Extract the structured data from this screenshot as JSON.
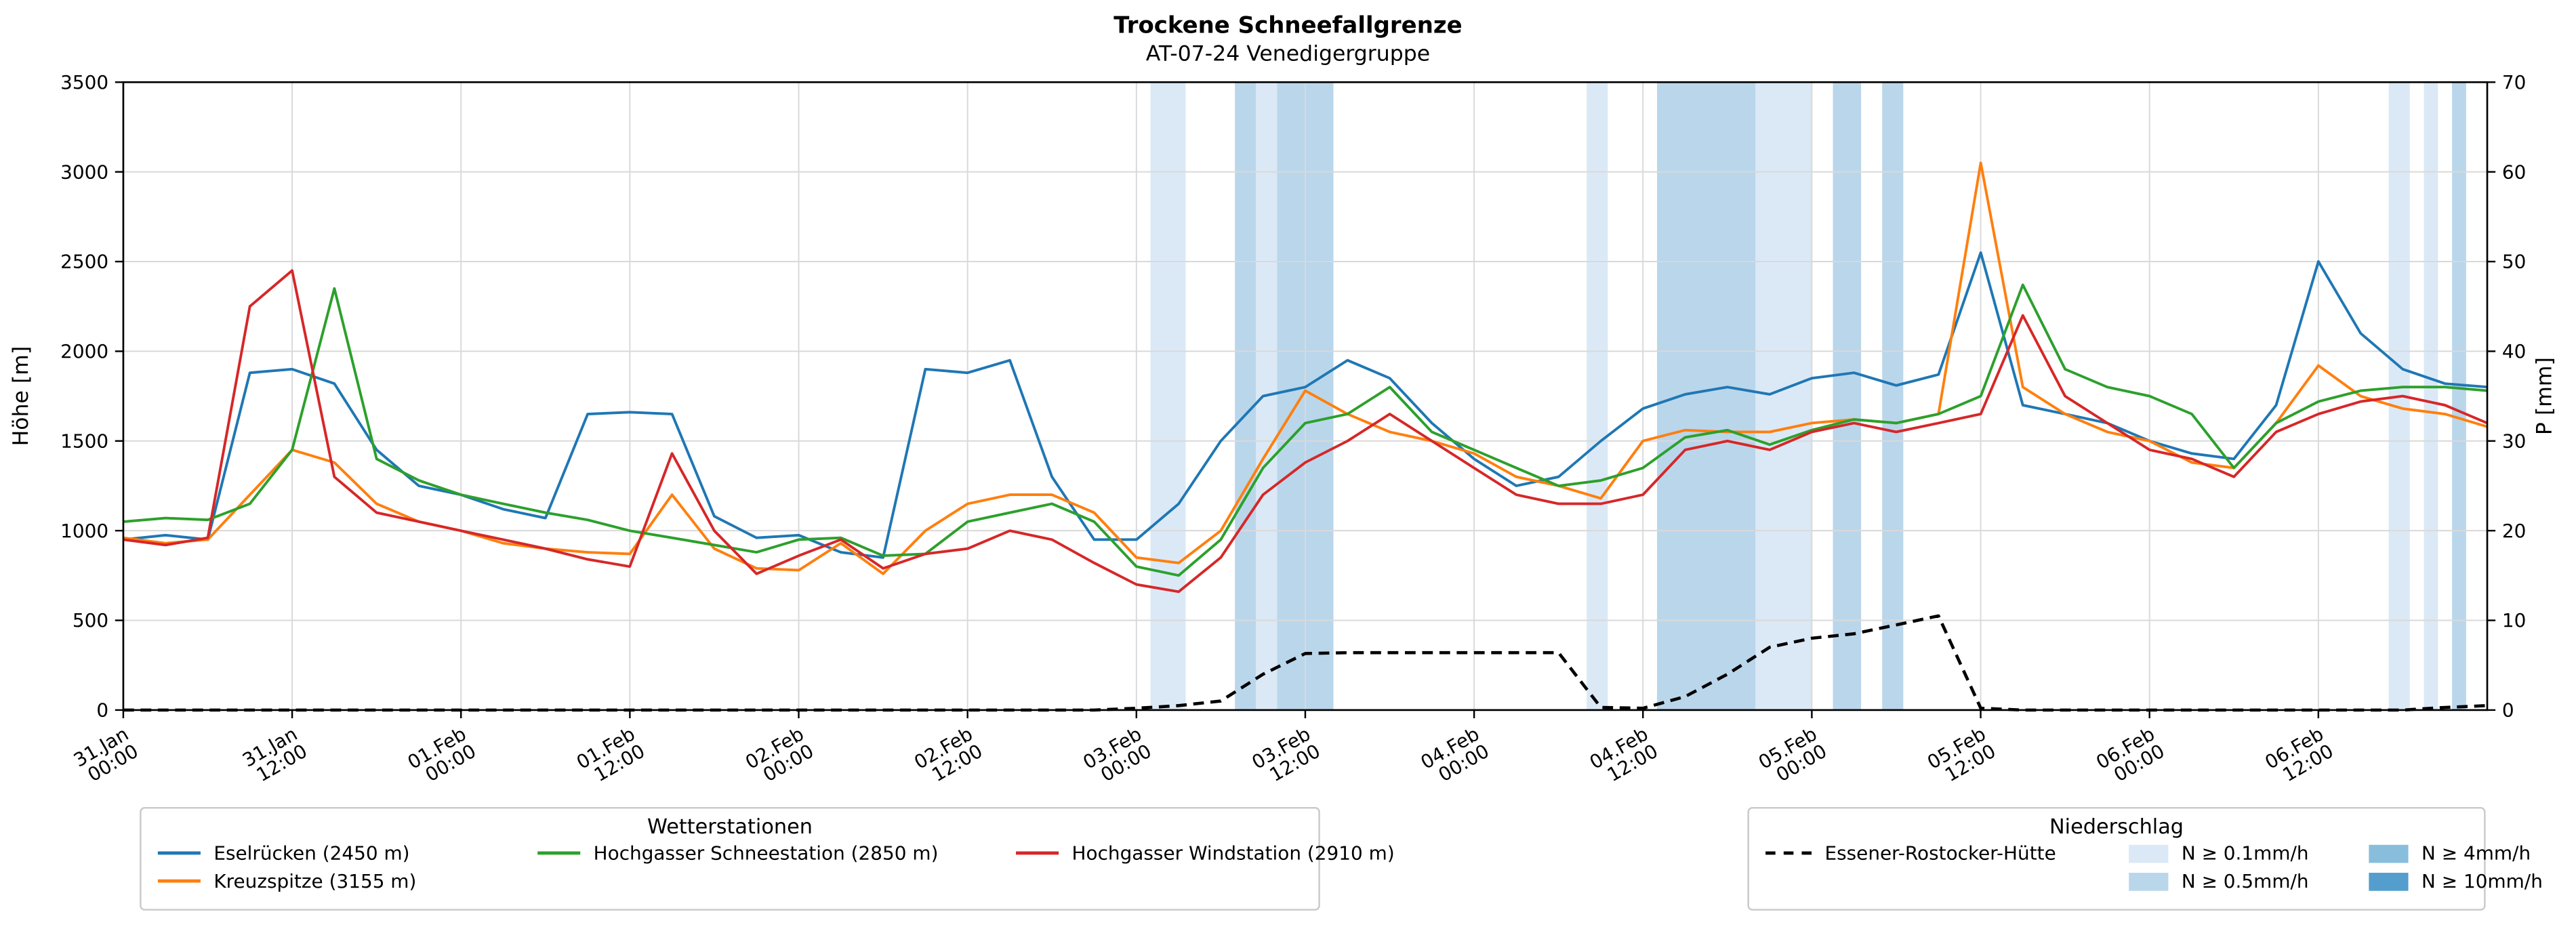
{
  "chart_data": {
    "type": "line",
    "title": "Trockene Schneefallgrenze",
    "subtitle": "AT-07-24 Venedigergruppe",
    "x_unit": "hours since 31.Jan 00:00",
    "xlim": [
      0,
      168
    ],
    "ylim_left": [
      0,
      3500
    ],
    "ylim_right": [
      0,
      70
    ],
    "ylabel_left": "Höhe [m]",
    "ylabel_right": "P [mm]",
    "yticks_left": [
      0,
      500,
      1000,
      1500,
      2000,
      2500,
      3000,
      3500
    ],
    "yticks_right": [
      0,
      10,
      20,
      30,
      40,
      50,
      60,
      70
    ],
    "grid": true,
    "legend_position": "below",
    "xtick_hours": [
      0,
      12,
      24,
      36,
      48,
      60,
      72,
      84,
      96,
      108,
      120,
      132,
      144,
      156
    ],
    "xtick_labels": [
      [
        "31.Jan",
        "00:00"
      ],
      [
        "31.Jan",
        "12:00"
      ],
      [
        "01.Feb",
        "00:00"
      ],
      [
        "01.Feb",
        "12:00"
      ],
      [
        "02.Feb",
        "00:00"
      ],
      [
        "02.Feb",
        "12:00"
      ],
      [
        "03.Feb",
        "00:00"
      ],
      [
        "03.Feb",
        "12:00"
      ],
      [
        "04.Feb",
        "00:00"
      ],
      [
        "04.Feb",
        "12:00"
      ],
      [
        "05.Feb",
        "00:00"
      ],
      [
        "05.Feb",
        "12:00"
      ],
      [
        "06.Feb",
        "00:00"
      ],
      [
        "06.Feb",
        "12:00"
      ]
    ],
    "x_hours": [
      0,
      3,
      6,
      9,
      12,
      15,
      18,
      21,
      24,
      27,
      30,
      33,
      36,
      39,
      42,
      45,
      48,
      51,
      54,
      57,
      60,
      63,
      66,
      69,
      72,
      75,
      78,
      81,
      84,
      87,
      90,
      93,
      96,
      99,
      102,
      105,
      108,
      111,
      114,
      117,
      120,
      123,
      126,
      129,
      132,
      135,
      138,
      141,
      144,
      147,
      150,
      153,
      156,
      159,
      162,
      165,
      168
    ],
    "series": [
      {
        "name": "Eselrücken (2450 m)",
        "color": "#1f77b4",
        "axis": "left",
        "dashed": false,
        "values": [
          950,
          975,
          950,
          1880,
          1900,
          1820,
          1450,
          1250,
          1200,
          1120,
          1070,
          1650,
          1660,
          1650,
          1080,
          960,
          975,
          880,
          850,
          1900,
          1880,
          1950,
          1300,
          950,
          950,
          1150,
          1500,
          1750,
          1800,
          1950,
          1850,
          1600,
          1400,
          1250,
          1300,
          1500,
          1680,
          1760,
          1800,
          1760,
          1850,
          1880,
          1810,
          1870,
          2550,
          1700,
          1650,
          1600,
          1500,
          1430,
          1400,
          1700,
          2500,
          2100,
          1900,
          1820,
          1800
        ]
      },
      {
        "name": "Kreuzspitze (3155 m)",
        "color": "#ff7f0e",
        "axis": "left",
        "dashed": false,
        "values": [
          960,
          930,
          950,
          1200,
          1450,
          1380,
          1150,
          1050,
          1000,
          930,
          900,
          880,
          870,
          1200,
          900,
          790,
          780,
          930,
          760,
          1000,
          1150,
          1200,
          1200,
          1100,
          850,
          820,
          1000,
          1400,
          1780,
          1650,
          1550,
          1500,
          1430,
          1300,
          1250,
          1180,
          1500,
          1560,
          1550,
          1550,
          1600,
          1620,
          1600,
          1650,
          3050,
          1800,
          1650,
          1550,
          1500,
          1380,
          1350,
          1600,
          1920,
          1750,
          1680,
          1650,
          1580
        ]
      },
      {
        "name": "Hochgasser Schneestation (2850 m)",
        "color": "#2ca02c",
        "axis": "left",
        "dashed": false,
        "values": [
          1050,
          1070,
          1060,
          1150,
          1450,
          2350,
          1400,
          1280,
          1200,
          1150,
          1100,
          1060,
          1000,
          960,
          920,
          880,
          950,
          960,
          860,
          870,
          1050,
          1100,
          1150,
          1050,
          800,
          750,
          950,
          1350,
          1600,
          1650,
          1800,
          1550,
          1450,
          1350,
          1250,
          1280,
          1350,
          1520,
          1560,
          1480,
          1560,
          1620,
          1600,
          1650,
          1750,
          2370,
          1900,
          1800,
          1750,
          1650,
          1350,
          1600,
          1720,
          1780,
          1800,
          1800,
          1780
        ]
      },
      {
        "name": "Hochgasser Windstation (2910 m)",
        "color": "#d62728",
        "axis": "left",
        "dashed": false,
        "values": [
          950,
          920,
          960,
          2250,
          2450,
          1300,
          1100,
          1050,
          1000,
          950,
          900,
          840,
          800,
          1430,
          1000,
          760,
          860,
          950,
          790,
          870,
          900,
          1000,
          950,
          820,
          700,
          660,
          850,
          1200,
          1380,
          1500,
          1650,
          1500,
          1350,
          1200,
          1150,
          1150,
          1200,
          1450,
          1500,
          1450,
          1550,
          1600,
          1550,
          1600,
          1650,
          2200,
          1750,
          1600,
          1450,
          1400,
          1300,
          1550,
          1650,
          1720,
          1750,
          1700,
          1600
        ]
      },
      {
        "name": "Essener-Rostocker-Hütte",
        "color": "#000000",
        "axis": "right",
        "dashed": true,
        "values": [
          0,
          0,
          0,
          0,
          0,
          0,
          0,
          0,
          0,
          0,
          0,
          0,
          0,
          0,
          0,
          0,
          0,
          0,
          0,
          0,
          0,
          0,
          0,
          0,
          0.2,
          0.5,
          1,
          4,
          6.3,
          6.4,
          6.4,
          6.4,
          6.4,
          6.4,
          6.4,
          0.3,
          0.2,
          1.5,
          4,
          7,
          8,
          8.5,
          9.5,
          10.5,
          0.2,
          0,
          0,
          0,
          0,
          0,
          0,
          0,
          0,
          0,
          0,
          0.3,
          0.5
        ]
      }
    ],
    "precip_bands": [
      {
        "start": 73,
        "end": 75.5,
        "level": "0.1"
      },
      {
        "start": 79,
        "end": 80.5,
        "level": "0.5"
      },
      {
        "start": 80.5,
        "end": 82,
        "level": "0.1"
      },
      {
        "start": 82,
        "end": 86,
        "level": "0.5"
      },
      {
        "start": 104,
        "end": 105.5,
        "level": "0.1"
      },
      {
        "start": 109,
        "end": 116,
        "level": "0.5"
      },
      {
        "start": 116,
        "end": 120,
        "level": "0.1"
      },
      {
        "start": 121.5,
        "end": 123.5,
        "level": "0.5"
      },
      {
        "start": 125,
        "end": 126.5,
        "level": "0.5"
      },
      {
        "start": 161,
        "end": 162.5,
        "level": "0.1"
      },
      {
        "start": 163.5,
        "end": 164.5,
        "level": "0.1"
      },
      {
        "start": 165.5,
        "end": 166.5,
        "level": "0.5"
      }
    ],
    "band_colors": {
      "0.1": "#dbe9f6",
      "0.5": "#bad6eb",
      "4": "#88bedc",
      "10": "#539ecd"
    }
  },
  "legend_stations": {
    "title": "Wetterstationen",
    "items": [
      {
        "label": "Eselrücken (2450 m)",
        "color": "#1f77b4"
      },
      {
        "label": "Kreuzspitze (3155 m)",
        "color": "#ff7f0e"
      },
      {
        "label": "Hochgasser Schneestation (2850 m)",
        "color": "#2ca02c"
      },
      {
        "label": "Hochgasser Windstation (2910 m)",
        "color": "#d62728"
      }
    ]
  },
  "legend_precip": {
    "title": "Niederschlag",
    "line_item": {
      "label": "Essener-Rostocker-Hütte",
      "color": "#000000",
      "dashed": true
    },
    "patch_items": [
      {
        "label": "N ≥ 0.1mm/h",
        "color": "#dbe9f6"
      },
      {
        "label": "N ≥ 0.5mm/h",
        "color": "#bad6eb"
      },
      {
        "label": "N ≥ 4mm/h",
        "color": "#88bedc"
      },
      {
        "label": "N ≥ 10mm/h",
        "color": "#539ecd"
      }
    ]
  }
}
